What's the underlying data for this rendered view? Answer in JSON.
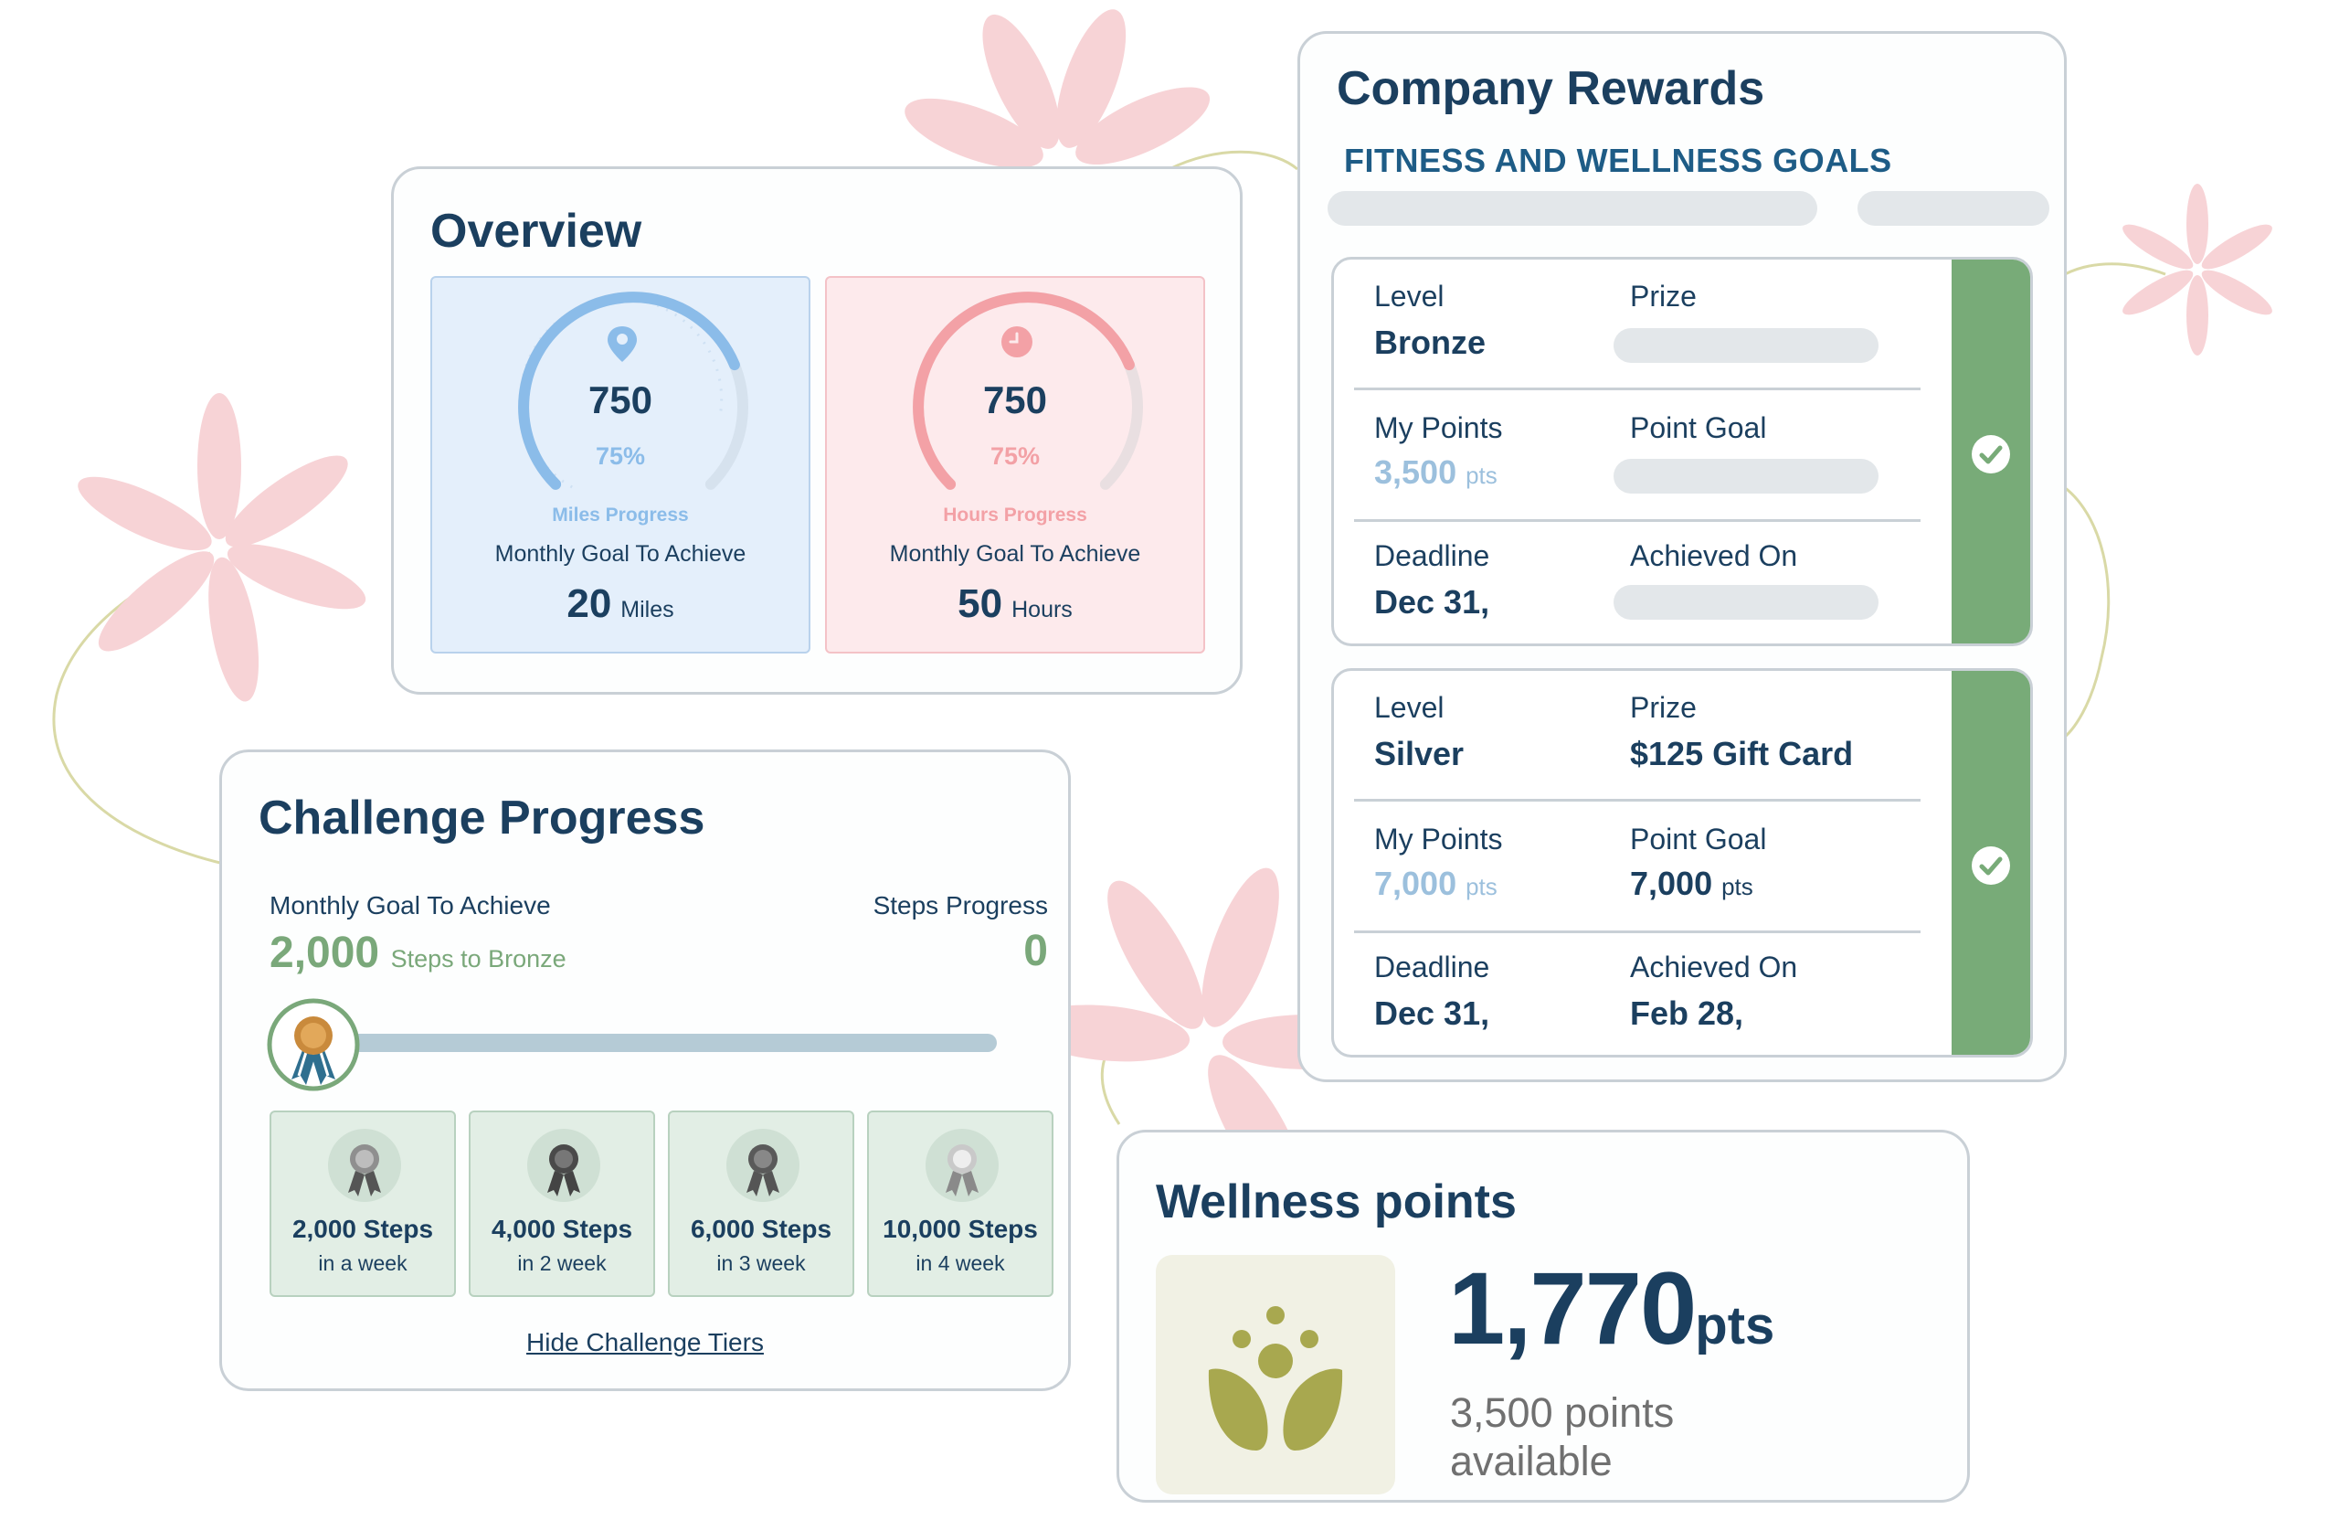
{
  "colors": {
    "navy": "#1b3f5f",
    "blue_accent": "#8bbce9",
    "pink_accent": "#f3a1a6",
    "green_accent": "#7aa87a",
    "reward_strip": "#78ab78",
    "leaf_olive": "#a8a84f",
    "flower_pink": "#f7d3d6"
  },
  "overview": {
    "title": "Overview",
    "miles": {
      "icon": "location-pin-icon",
      "value": "750",
      "percent": "75%",
      "progress_fraction": 0.75,
      "label": "Miles Progress",
      "goal_label": "Monthly Goal To Achieve",
      "goal_value": "20",
      "goal_unit": "Miles"
    },
    "hours": {
      "icon": "clock-icon",
      "value": "750",
      "percent": "75%",
      "progress_fraction": 0.75,
      "label": "Hours Progress",
      "goal_label": "Monthly Goal To Achieve",
      "goal_value": "50",
      "goal_unit": "Hours"
    }
  },
  "challenge": {
    "title": "Challenge Progress",
    "goal_label": "Monthly Goal To Achieve",
    "goal_value": "2,000",
    "goal_suffix": "Steps to Bronze",
    "steps_label": "Steps Progress",
    "steps_value": "0",
    "progress_fraction": 0,
    "tiers": [
      {
        "steps": "2,000 Steps",
        "period": "in a week",
        "icon": "silver-medal-icon"
      },
      {
        "steps": "4,000 Steps",
        "period": "in 2 week",
        "icon": "dark-medal-icon"
      },
      {
        "steps": "6,000 Steps",
        "period": "in 3 week",
        "icon": "dark-medal-icon"
      },
      {
        "steps": "10,000 Steps",
        "period": "in 4 week",
        "icon": "platinum-medal-icon"
      }
    ],
    "hide_link": "Hide Challenge Tiers"
  },
  "rewards": {
    "title": "Company Rewards",
    "subtitle": "FITNESS AND WELLNESS GOALS",
    "tiers": [
      {
        "level_label": "Level",
        "level": "Bronze",
        "prize_label": "Prize",
        "prize": "",
        "points_label": "My Points",
        "points": "3,500",
        "points_unit": "pts",
        "goal_label": "Point Goal",
        "goal": "",
        "goal_unit": "",
        "deadline_label": "Deadline",
        "deadline": "Dec 31,",
        "achieved_label": "Achieved On",
        "achieved": "",
        "status": "check-icon"
      },
      {
        "level_label": "Level",
        "level": "Silver",
        "prize_label": "Prize",
        "prize": "$125 Gift Card",
        "points_label": "My Points",
        "points": "7,000",
        "points_unit": "pts",
        "goal_label": "Point Goal",
        "goal": "7,000",
        "goal_unit": "pts",
        "deadline_label": "Deadline",
        "deadline": "Dec 31,",
        "achieved_label": "Achieved On",
        "achieved": "Feb 28,",
        "status": "check-icon"
      }
    ]
  },
  "wellness": {
    "title": "Wellness points",
    "icon": "wellness-plant-icon",
    "points": "1,770",
    "points_unit": "pts",
    "available": "3,500 points available"
  }
}
